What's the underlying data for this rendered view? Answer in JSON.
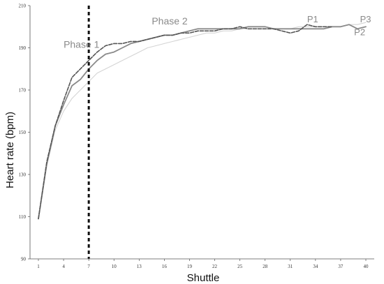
{
  "chart_data": {
    "type": "line",
    "xlabel": "Shuttle",
    "ylabel": "Heart rate (bpm)",
    "xlim": [
      1,
      40
    ],
    "ylim": [
      90,
      210
    ],
    "xticks": [
      1,
      4,
      7,
      10,
      13,
      16,
      19,
      22,
      25,
      28,
      31,
      34,
      37,
      40
    ],
    "yticks": [
      90,
      110,
      130,
      150,
      170,
      190,
      210
    ],
    "grid": false,
    "phase_divider_x": 7,
    "annotations": [
      {
        "text": "Phase 1",
        "x": 4,
        "y": 190
      },
      {
        "text": "Phase 2",
        "x": 14.5,
        "y": 201
      },
      {
        "text": "P1",
        "x": 33,
        "y": 202
      },
      {
        "text": "P2",
        "x": 38.6,
        "y": 196
      },
      {
        "text": "P3",
        "x": 39.3,
        "y": 202
      }
    ],
    "series": [
      {
        "name": "P1",
        "style": "dashed",
        "color": "#555555",
        "x": [
          1,
          2,
          3,
          4,
          5,
          6,
          7,
          8,
          9,
          10,
          11,
          12,
          13,
          14,
          15,
          16,
          17,
          18,
          19,
          20,
          21,
          22,
          23,
          24,
          25,
          26,
          27,
          28,
          29,
          30,
          31,
          32,
          33,
          34,
          35,
          36
        ],
        "values": [
          109,
          136,
          153,
          165,
          176,
          180,
          184,
          188,
          191,
          192,
          192,
          193,
          193,
          194,
          195,
          196,
          196,
          197,
          197,
          198,
          198,
          198,
          199,
          199,
          200,
          199,
          199,
          199,
          199,
          198,
          197,
          198,
          201,
          200,
          200,
          200
        ]
      },
      {
        "name": "P2",
        "style": "solid",
        "color": "#8a8a8a",
        "x": [
          1,
          2,
          3,
          4,
          5,
          6,
          7,
          8,
          9,
          10,
          11,
          12,
          13,
          14,
          15,
          16,
          17,
          18,
          19,
          20,
          21,
          22,
          23,
          24,
          25,
          26,
          27,
          28,
          29,
          30,
          31,
          32,
          33,
          34,
          35,
          36,
          37,
          38,
          39,
          40
        ],
        "values": [
          109,
          135,
          153,
          163,
          172,
          175,
          180,
          184,
          187,
          188,
          190,
          192,
          193,
          194,
          195,
          196,
          196,
          197,
          198,
          199,
          199,
          199,
          199,
          199,
          199,
          200,
          200,
          200,
          199,
          199,
          199,
          199,
          199,
          199,
          199,
          200,
          200,
          201,
          199,
          200
        ]
      },
      {
        "name": "P3",
        "style": "solid",
        "color": "#d4d4d4",
        "x": [
          1,
          2,
          3,
          4,
          5,
          6,
          7,
          8,
          9,
          10,
          11,
          12,
          13,
          14,
          15,
          16,
          17,
          18,
          19,
          20,
          21,
          22,
          23,
          24,
          25,
          26,
          27,
          28,
          29,
          30,
          31,
          32,
          33,
          34,
          35,
          36,
          37,
          38,
          39,
          40
        ],
        "values": [
          109,
          134,
          151,
          160,
          166,
          170,
          174,
          178,
          180,
          182,
          184,
          186,
          188,
          190,
          191,
          192,
          193,
          194,
          195,
          196,
          197,
          197,
          198,
          198,
          199,
          199,
          199,
          199,
          199,
          199,
          199,
          200,
          200,
          200,
          200,
          200,
          200,
          201,
          201,
          202
        ]
      }
    ]
  }
}
